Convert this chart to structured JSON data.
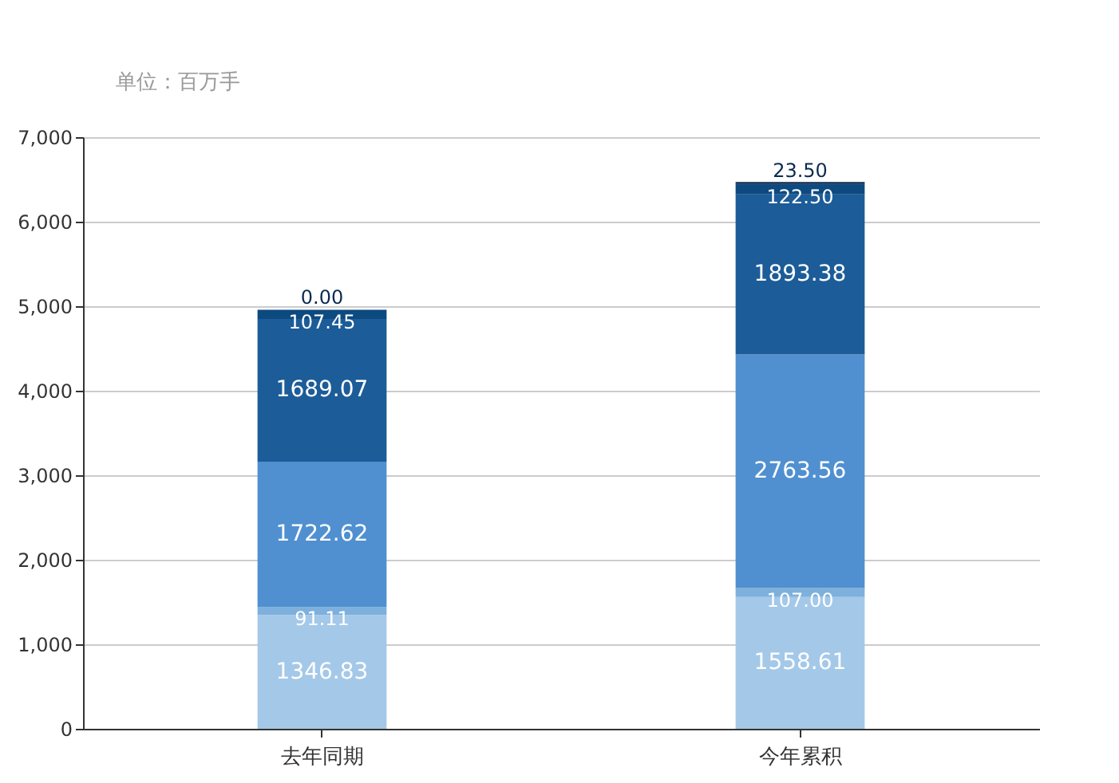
{
  "chart_data": {
    "type": "bar",
    "stacked": true,
    "ylabel": "单位：百万手",
    "categories": [
      "去年同期",
      "今年累积"
    ],
    "series": [
      {
        "color": "#a4c8e8",
        "values": [
          1346.83,
          1558.61
        ],
        "value_labels": [
          "1346.83",
          "1558.61"
        ]
      },
      {
        "color": "#7eb0dd",
        "values": [
          91.11,
          107.0
        ],
        "value_labels": [
          "91.11",
          "107.00"
        ]
      },
      {
        "color": "#5090d0",
        "values": [
          1722.62,
          2763.56
        ],
        "value_labels": [
          "1722.62",
          "2763.56"
        ]
      },
      {
        "color": "#1c5c98",
        "values": [
          1689.07,
          1893.38
        ],
        "value_labels": [
          "1689.07",
          "1893.38"
        ]
      },
      {
        "color": "#0d4a80",
        "values": [
          107.45,
          122.5
        ],
        "value_labels": [
          "107.45",
          "122.50"
        ]
      },
      {
        "color": "#0a2a50",
        "values": [
          0.0,
          23.5
        ],
        "value_labels": [
          "0.00",
          "23.50"
        ]
      }
    ],
    "ylim": [
      0,
      7000
    ],
    "yticks": [
      {
        "value": 0,
        "label": "0"
      },
      {
        "value": 1000,
        "label": "1,000"
      },
      {
        "value": 2000,
        "label": "2,000"
      },
      {
        "value": 3000,
        "label": "3,000"
      },
      {
        "value": 4000,
        "label": "4,000"
      },
      {
        "value": 5000,
        "label": "5,000"
      },
      {
        "value": 6000,
        "label": "6,000"
      },
      {
        "value": 7000,
        "label": "7,000"
      }
    ],
    "grid": "y",
    "legend": false
  }
}
